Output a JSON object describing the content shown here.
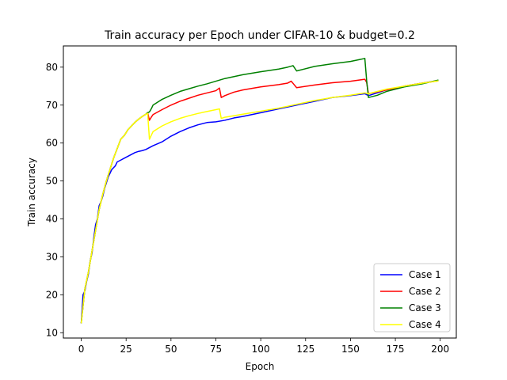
{
  "chart_data": {
    "type": "line",
    "title": "Train accuracy per Epoch under CIFAR-10 & budget=0.2",
    "xlabel": "Epoch",
    "ylabel": "Train accuracy",
    "xlim": [
      -9.95,
      208.95
    ],
    "ylim": [
      8.6,
      85.6
    ],
    "xticks": [
      0,
      25,
      50,
      75,
      100,
      125,
      150,
      175,
      200
    ],
    "yticks": [
      10,
      20,
      30,
      40,
      50,
      60,
      70,
      80
    ],
    "grid": false,
    "legend_position": "bottom-right",
    "colors": {
      "Case 1": "#0000ff",
      "Case 2": "#ff0000",
      "Case 3": "#008000",
      "Case 4": "#ffff00"
    },
    "series": [
      {
        "name": "Case 1",
        "x": [
          0,
          1,
          2,
          3,
          4,
          5,
          6,
          7,
          8,
          9,
          10,
          11,
          12,
          13,
          14,
          15,
          16,
          17,
          18,
          19,
          20,
          22,
          24,
          26,
          28,
          30,
          32,
          34,
          36,
          38,
          40,
          45,
          50,
          55,
          60,
          65,
          70,
          75,
          80,
          85,
          90,
          100,
          110,
          120,
          130,
          140,
          150,
          158,
          160,
          170,
          180,
          190,
          199
        ],
        "y": [
          12.5,
          20.0,
          21.0,
          23.5,
          25.5,
          29.0,
          31.0,
          35.0,
          38.5,
          40.0,
          43.5,
          44.5,
          46.0,
          48.0,
          49.5,
          51.0,
          52.0,
          53.0,
          53.5,
          54.0,
          55.0,
          55.5,
          56.0,
          56.5,
          57.0,
          57.5,
          57.8,
          58.0,
          58.3,
          58.8,
          59.3,
          60.3,
          61.8,
          63.0,
          64.0,
          64.8,
          65.4,
          65.6,
          66.0,
          66.6,
          67.0,
          68.0,
          69.0,
          70.0,
          71.0,
          72.0,
          72.5,
          73.0,
          72.5,
          74.0,
          75.0,
          75.8,
          76.5
        ]
      },
      {
        "name": "Case 2",
        "x": [
          0,
          2,
          4,
          6,
          8,
          10,
          12,
          14,
          16,
          18,
          20,
          22,
          24,
          26,
          28,
          30,
          32,
          34,
          36,
          37,
          38,
          39,
          40,
          45,
          50,
          55,
          60,
          65,
          70,
          75,
          77,
          78,
          80,
          85,
          90,
          100,
          110,
          115,
          117,
          120,
          130,
          140,
          150,
          158,
          159,
          160,
          170,
          180,
          190,
          199
        ],
        "y": [
          12.5,
          21.5,
          26.0,
          31.5,
          37.0,
          42.5,
          46.5,
          50.0,
          53.0,
          56.0,
          58.5,
          61.0,
          62.0,
          63.5,
          64.5,
          65.5,
          66.3,
          67.0,
          67.6,
          68.0,
          66.0,
          66.8,
          67.5,
          68.8,
          70.0,
          71.0,
          71.8,
          72.6,
          73.2,
          73.8,
          74.5,
          72.0,
          72.5,
          73.4,
          74.0,
          74.8,
          75.4,
          75.8,
          76.3,
          74.6,
          75.3,
          75.9,
          76.3,
          76.8,
          76.0,
          73.0,
          74.0,
          75.0,
          75.8,
          76.4
        ]
      },
      {
        "name": "Case 3",
        "x": [
          0,
          2,
          4,
          6,
          8,
          10,
          12,
          14,
          16,
          18,
          20,
          22,
          24,
          26,
          28,
          30,
          32,
          34,
          36,
          37,
          38,
          39,
          40,
          45,
          50,
          55,
          60,
          65,
          70,
          75,
          80,
          90,
          100,
          110,
          115,
          118,
          120,
          130,
          140,
          150,
          155,
          158,
          159,
          160,
          165,
          170,
          180,
          190,
          199
        ],
        "y": [
          12.5,
          21.5,
          26.0,
          31.5,
          37.0,
          42.5,
          46.5,
          50.0,
          53.0,
          56.0,
          58.5,
          61.0,
          62.0,
          63.5,
          64.5,
          65.5,
          66.3,
          67.0,
          67.6,
          68.0,
          68.2,
          69.0,
          70.0,
          71.5,
          72.6,
          73.6,
          74.3,
          75.0,
          75.6,
          76.3,
          77.0,
          78.0,
          78.8,
          79.5,
          80.0,
          80.4,
          79.0,
          80.2,
          80.9,
          81.5,
          82.0,
          82.3,
          76.5,
          72.0,
          72.6,
          73.6,
          74.8,
          75.6,
          76.6
        ]
      },
      {
        "name": "Case 4",
        "x": [
          0,
          2,
          4,
          6,
          8,
          10,
          12,
          14,
          16,
          18,
          20,
          22,
          24,
          26,
          28,
          30,
          32,
          34,
          36,
          37,
          38,
          39,
          40,
          45,
          50,
          55,
          60,
          65,
          70,
          75,
          77,
          78,
          80,
          90,
          100,
          110,
          120,
          130,
          140,
          150,
          158,
          160,
          165,
          170,
          180,
          190,
          199
        ],
        "y": [
          12.5,
          21.5,
          26.0,
          31.5,
          37.0,
          42.5,
          46.5,
          50.0,
          53.0,
          56.0,
          58.5,
          61.0,
          62.0,
          63.5,
          64.5,
          65.5,
          66.3,
          67.0,
          67.6,
          67.8,
          61.0,
          62.0,
          63.0,
          64.5,
          65.6,
          66.5,
          67.2,
          67.8,
          68.3,
          68.8,
          69.0,
          66.5,
          66.8,
          67.6,
          68.4,
          69.2,
          70.2,
          71.2,
          72.0,
          72.6,
          73.2,
          73.0,
          73.6,
          74.2,
          75.0,
          75.8,
          76.4
        ]
      }
    ]
  }
}
